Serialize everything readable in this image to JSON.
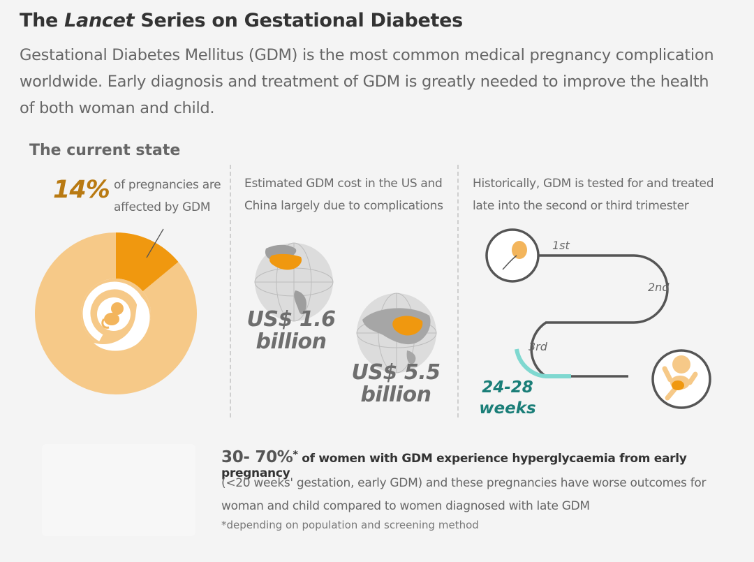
{
  "header": {
    "title_prefix": "The ",
    "title_italic": "Lancet",
    "title_suffix": " Series on Gestational Diabetes",
    "intro": "Gestational Diabetes Mellitus (GDM) is the most common medical pregnancy complication worldwide. Early diagnosis and treatment of GDM is greatly needed to improve the health of both woman and child."
  },
  "current_state": {
    "heading": "The current state",
    "prevalence": {
      "value_label": "14%",
      "fraction": 0.14,
      "caption_line1": "of pregnancies are",
      "caption_line2": "affected by GDM"
    },
    "cost": {
      "caption_line1": "Estimated GDM cost in the US and",
      "caption_line2": "China largely due to complications",
      "us_amount": "US$ 1.6",
      "us_unit": "billion",
      "china_amount": "US$ 5.5",
      "china_unit": "billion"
    },
    "timeline": {
      "caption_line1": "Historically, GDM is tested for and treated",
      "caption_line2": "late into the second or third trimester",
      "trimester_1": "1st",
      "trimester_2": "2nd",
      "trimester_3": "3rd",
      "weeks_range": "24-28",
      "weeks_unit": "weeks"
    }
  },
  "bottom": {
    "pct": "30- 70%",
    "asterisk": "*",
    "main": " of women with GDM experience hyperglycaemia from early pregnancy",
    "line2": "(<20 weeks' gestation, early GDM) and these pregnancies have worse outcomes for",
    "line3": "woman and child compared to women diagnosed with late GDM",
    "footnote": "*depending on population and screening method"
  },
  "colors": {
    "donut_main": "#f6c988",
    "donut_highlight": "#f0980f",
    "map_highlight": "#f0980f",
    "timeline_track": "#555555",
    "timeline_highlight": "#7fd8d0",
    "weeks_text": "#1a7e78"
  }
}
